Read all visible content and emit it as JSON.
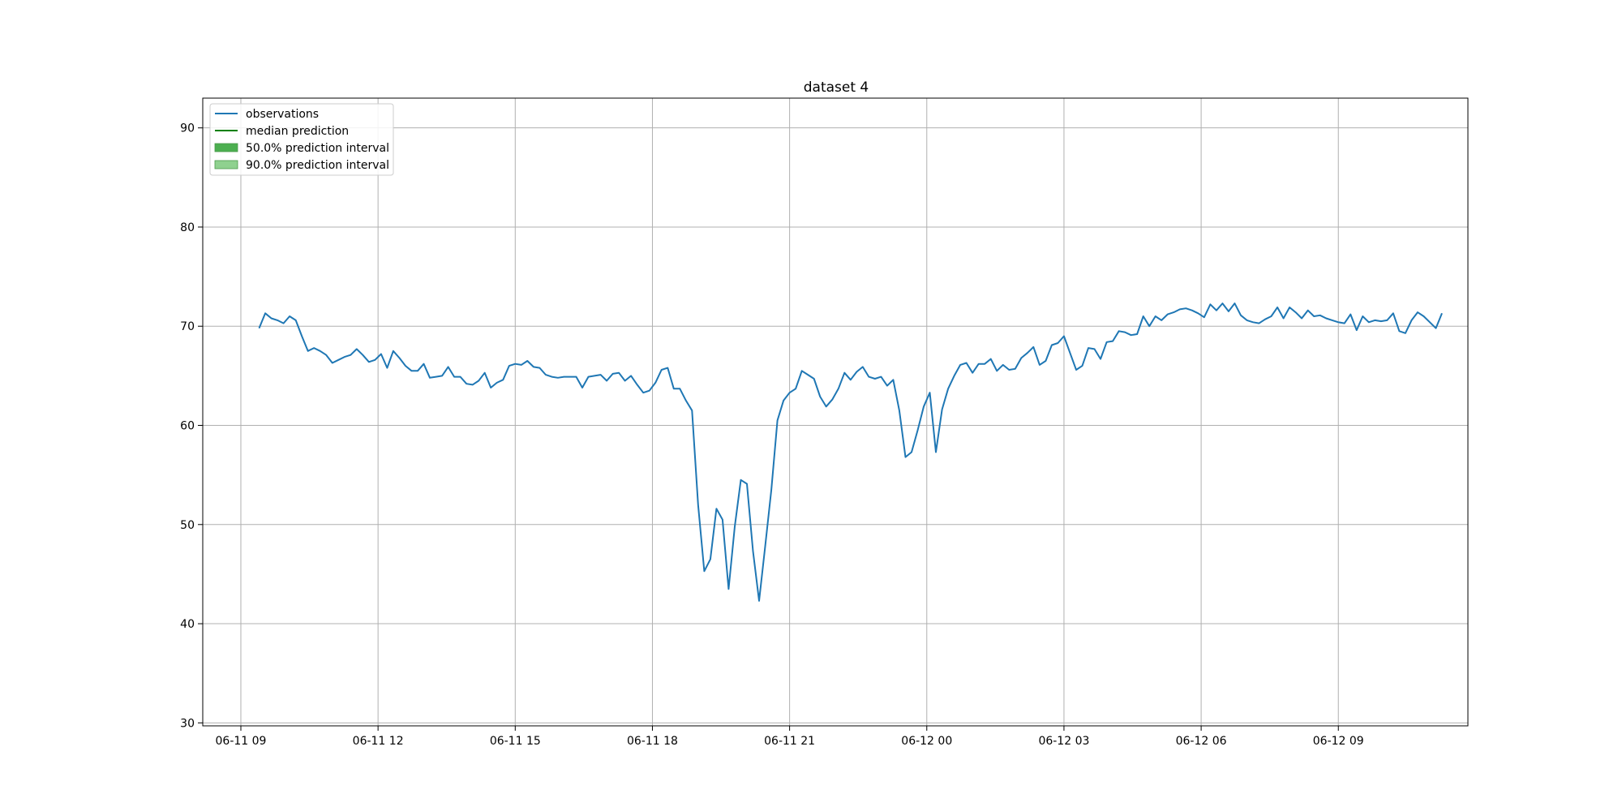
{
  "chart_data": {
    "type": "line",
    "title": "dataset 4",
    "xlabel": "",
    "ylabel": "",
    "grid": true,
    "legend_position": "top-left",
    "x_range": [
      "2023-06-11 08:10",
      "2023-06-12 11:50"
    ],
    "ylim": [
      29.7,
      93
    ],
    "x_ticks": [
      {
        "t": "2023-06-11 09:00",
        "label": "06-11 09"
      },
      {
        "t": "2023-06-11 12:00",
        "label": "06-11 12"
      },
      {
        "t": "2023-06-11 15:00",
        "label": "06-11 15"
      },
      {
        "t": "2023-06-11 18:00",
        "label": "06-11 18"
      },
      {
        "t": "2023-06-11 21:00",
        "label": "06-11 21"
      },
      {
        "t": "2023-06-12 00:00",
        "label": "06-12 00"
      },
      {
        "t": "2023-06-12 03:00",
        "label": "06-12 03"
      },
      {
        "t": "2023-06-12 06:00",
        "label": "06-12 06"
      },
      {
        "t": "2023-06-12 09:00",
        "label": "06-12 09"
      }
    ],
    "y_ticks": [
      30,
      40,
      50,
      60,
      70,
      80,
      90
    ],
    "colors": {
      "observations": "#1f77b4",
      "median": "#008000",
      "interval_50": "#4caf50",
      "interval_90": "#8fd18f"
    },
    "series": [
      {
        "name": "observations",
        "points": [
          [
            "2023-06-11 09:24",
            69.8
          ],
          [
            "2023-06-11 09:32",
            71.3
          ],
          [
            "2023-06-11 09:40",
            70.8
          ],
          [
            "2023-06-11 09:48",
            70.6
          ],
          [
            "2023-06-11 09:56",
            70.3
          ],
          [
            "2023-06-11 10:04",
            71.0
          ],
          [
            "2023-06-11 10:12",
            70.6
          ],
          [
            "2023-06-11 10:20",
            69.0
          ],
          [
            "2023-06-11 10:28",
            67.5
          ],
          [
            "2023-06-11 10:36",
            67.8
          ],
          [
            "2023-06-11 10:44",
            67.5
          ],
          [
            "2023-06-11 10:52",
            67.1
          ],
          [
            "2023-06-11 11:00",
            66.3
          ],
          [
            "2023-06-11 11:08",
            66.6
          ],
          [
            "2023-06-11 11:16",
            66.9
          ],
          [
            "2023-06-11 11:24",
            67.1
          ],
          [
            "2023-06-11 11:32",
            67.7
          ],
          [
            "2023-06-11 11:40",
            67.1
          ],
          [
            "2023-06-11 11:48",
            66.4
          ],
          [
            "2023-06-11 11:56",
            66.6
          ],
          [
            "2023-06-11 12:04",
            67.2
          ],
          [
            "2023-06-11 12:12",
            65.8
          ],
          [
            "2023-06-11 12:20",
            67.5
          ],
          [
            "2023-06-11 12:28",
            66.8
          ],
          [
            "2023-06-11 12:36",
            66.0
          ],
          [
            "2023-06-11 12:44",
            65.5
          ],
          [
            "2023-06-11 12:52",
            65.5
          ],
          [
            "2023-06-11 13:00",
            66.2
          ],
          [
            "2023-06-11 13:08",
            64.8
          ],
          [
            "2023-06-11 13:16",
            64.9
          ],
          [
            "2023-06-11 13:24",
            65.0
          ],
          [
            "2023-06-11 13:32",
            65.9
          ],
          [
            "2023-06-11 13:40",
            64.9
          ],
          [
            "2023-06-11 13:48",
            64.9
          ],
          [
            "2023-06-11 13:56",
            64.2
          ],
          [
            "2023-06-11 14:04",
            64.1
          ],
          [
            "2023-06-11 14:12",
            64.5
          ],
          [
            "2023-06-11 14:20",
            65.3
          ],
          [
            "2023-06-11 14:28",
            63.8
          ],
          [
            "2023-06-11 14:36",
            64.3
          ],
          [
            "2023-06-11 14:44",
            64.6
          ],
          [
            "2023-06-11 14:52",
            66.0
          ],
          [
            "2023-06-11 15:00",
            66.2
          ],
          [
            "2023-06-11 15:08",
            66.1
          ],
          [
            "2023-06-11 15:16",
            66.5
          ],
          [
            "2023-06-11 15:24",
            65.9
          ],
          [
            "2023-06-11 15:32",
            65.8
          ],
          [
            "2023-06-11 15:40",
            65.1
          ],
          [
            "2023-06-11 15:48",
            64.9
          ],
          [
            "2023-06-11 15:56",
            64.8
          ],
          [
            "2023-06-11 16:04",
            64.9
          ],
          [
            "2023-06-11 16:12",
            64.9
          ],
          [
            "2023-06-11 16:20",
            64.9
          ],
          [
            "2023-06-11 16:28",
            63.8
          ],
          [
            "2023-06-11 16:36",
            64.9
          ],
          [
            "2023-06-11 16:44",
            65.0
          ],
          [
            "2023-06-11 16:52",
            65.1
          ],
          [
            "2023-06-11 17:00",
            64.5
          ],
          [
            "2023-06-11 17:08",
            65.2
          ],
          [
            "2023-06-11 17:16",
            65.3
          ],
          [
            "2023-06-11 17:24",
            64.5
          ],
          [
            "2023-06-11 17:32",
            65.0
          ],
          [
            "2023-06-11 17:40",
            64.1
          ],
          [
            "2023-06-11 17:48",
            63.3
          ],
          [
            "2023-06-11 17:56",
            63.5
          ],
          [
            "2023-06-11 18:04",
            64.3
          ],
          [
            "2023-06-11 18:12",
            65.6
          ],
          [
            "2023-06-11 18:20",
            65.8
          ],
          [
            "2023-06-11 18:28",
            63.7
          ],
          [
            "2023-06-11 18:36",
            63.7
          ],
          [
            "2023-06-11 18:44",
            62.5
          ],
          [
            "2023-06-11 18:52",
            61.5
          ],
          [
            "2023-06-11 19:00",
            52.0
          ],
          [
            "2023-06-11 19:08",
            45.3
          ],
          [
            "2023-06-11 19:16",
            46.5
          ],
          [
            "2023-06-11 19:24",
            51.6
          ],
          [
            "2023-06-11 19:32",
            50.5
          ],
          [
            "2023-06-11 19:40",
            43.5
          ],
          [
            "2023-06-11 19:48",
            49.8
          ],
          [
            "2023-06-11 19:56",
            54.5
          ],
          [
            "2023-06-11 20:04",
            54.1
          ],
          [
            "2023-06-11 20:12",
            47.3
          ],
          [
            "2023-06-11 20:20",
            42.3
          ],
          [
            "2023-06-11 20:28",
            47.8
          ],
          [
            "2023-06-11 20:36",
            53.5
          ],
          [
            "2023-06-11 20:44",
            60.5
          ],
          [
            "2023-06-11 20:52",
            62.5
          ],
          [
            "2023-06-11 21:00",
            63.3
          ],
          [
            "2023-06-11 21:08",
            63.7
          ],
          [
            "2023-06-11 21:16",
            65.5
          ],
          [
            "2023-06-11 21:24",
            65.1
          ],
          [
            "2023-06-11 21:32",
            64.7
          ],
          [
            "2023-06-11 21:40",
            62.9
          ],
          [
            "2023-06-11 21:48",
            61.9
          ],
          [
            "2023-06-11 21:56",
            62.6
          ],
          [
            "2023-06-11 22:04",
            63.7
          ],
          [
            "2023-06-11 22:12",
            65.3
          ],
          [
            "2023-06-11 22:20",
            64.6
          ],
          [
            "2023-06-11 22:28",
            65.4
          ],
          [
            "2023-06-11 22:36",
            65.9
          ],
          [
            "2023-06-11 22:44",
            64.9
          ],
          [
            "2023-06-11 22:52",
            64.7
          ],
          [
            "2023-06-11 23:00",
            64.9
          ],
          [
            "2023-06-11 23:08",
            64.0
          ],
          [
            "2023-06-11 23:16",
            64.6
          ],
          [
            "2023-06-11 23:24",
            61.5
          ],
          [
            "2023-06-11 23:32",
            56.8
          ],
          [
            "2023-06-11 23:40",
            57.3
          ],
          [
            "2023-06-11 23:48",
            59.5
          ],
          [
            "2023-06-11 23:56",
            61.9
          ],
          [
            "2023-06-12 00:04",
            63.3
          ],
          [
            "2023-06-12 00:12",
            57.3
          ],
          [
            "2023-06-12 00:20",
            61.6
          ],
          [
            "2023-06-12 00:28",
            63.7
          ],
          [
            "2023-06-12 00:36",
            65.0
          ],
          [
            "2023-06-12 00:44",
            66.1
          ],
          [
            "2023-06-12 00:52",
            66.3
          ],
          [
            "2023-06-12 01:00",
            65.3
          ],
          [
            "2023-06-12 01:08",
            66.2
          ],
          [
            "2023-06-12 01:16",
            66.2
          ],
          [
            "2023-06-12 01:24",
            66.7
          ],
          [
            "2023-06-12 01:32",
            65.5
          ],
          [
            "2023-06-12 01:40",
            66.1
          ],
          [
            "2023-06-12 01:48",
            65.6
          ],
          [
            "2023-06-12 01:56",
            65.7
          ],
          [
            "2023-06-12 02:04",
            66.8
          ],
          [
            "2023-06-12 02:12",
            67.3
          ],
          [
            "2023-06-12 02:20",
            67.9
          ],
          [
            "2023-06-12 02:28",
            66.1
          ],
          [
            "2023-06-12 02:36",
            66.5
          ],
          [
            "2023-06-12 02:44",
            68.1
          ],
          [
            "2023-06-12 02:52",
            68.3
          ],
          [
            "2023-06-12 03:00",
            69.0
          ],
          [
            "2023-06-12 03:08",
            67.3
          ],
          [
            "2023-06-12 03:16",
            65.6
          ],
          [
            "2023-06-12 03:24",
            66.0
          ],
          [
            "2023-06-12 03:32",
            67.8
          ],
          [
            "2023-06-12 03:40",
            67.7
          ],
          [
            "2023-06-12 03:48",
            66.7
          ],
          [
            "2023-06-12 03:56",
            68.4
          ],
          [
            "2023-06-12 04:04",
            68.5
          ],
          [
            "2023-06-12 04:12",
            69.5
          ],
          [
            "2023-06-12 04:20",
            69.4
          ],
          [
            "2023-06-12 04:28",
            69.1
          ],
          [
            "2023-06-12 04:36",
            69.2
          ],
          [
            "2023-06-12 04:44",
            71.0
          ],
          [
            "2023-06-12 04:52",
            70.0
          ],
          [
            "2023-06-12 05:00",
            71.0
          ],
          [
            "2023-06-12 05:08",
            70.6
          ],
          [
            "2023-06-12 05:16",
            71.2
          ],
          [
            "2023-06-12 05:24",
            71.4
          ],
          [
            "2023-06-12 05:32",
            71.7
          ],
          [
            "2023-06-12 05:40",
            71.8
          ],
          [
            "2023-06-12 05:48",
            71.6
          ],
          [
            "2023-06-12 05:56",
            71.3
          ],
          [
            "2023-06-12 06:04",
            70.9
          ],
          [
            "2023-06-12 06:12",
            72.2
          ],
          [
            "2023-06-12 06:20",
            71.6
          ],
          [
            "2023-06-12 06:28",
            72.3
          ],
          [
            "2023-06-12 06:36",
            71.5
          ],
          [
            "2023-06-12 06:44",
            72.3
          ],
          [
            "2023-06-12 06:52",
            71.1
          ],
          [
            "2023-06-12 07:00",
            70.6
          ],
          [
            "2023-06-12 07:08",
            70.4
          ],
          [
            "2023-06-12 07:16",
            70.3
          ],
          [
            "2023-06-12 07:24",
            70.7
          ],
          [
            "2023-06-12 07:32",
            71.0
          ],
          [
            "2023-06-12 07:40",
            71.9
          ],
          [
            "2023-06-12 07:48",
            70.8
          ],
          [
            "2023-06-12 07:56",
            71.9
          ],
          [
            "2023-06-12 08:04",
            71.4
          ],
          [
            "2023-06-12 08:12",
            70.8
          ],
          [
            "2023-06-12 08:20",
            71.6
          ],
          [
            "2023-06-12 08:28",
            71.0
          ],
          [
            "2023-06-12 08:36",
            71.1
          ],
          [
            "2023-06-12 08:44",
            70.8
          ],
          [
            "2023-06-12 08:52",
            70.6
          ],
          [
            "2023-06-12 09:00",
            70.4
          ],
          [
            "2023-06-12 09:08",
            70.3
          ],
          [
            "2023-06-12 09:16",
            71.2
          ],
          [
            "2023-06-12 09:24",
            69.6
          ],
          [
            "2023-06-12 09:32",
            71.0
          ],
          [
            "2023-06-12 09:40",
            70.4
          ],
          [
            "2023-06-12 09:48",
            70.6
          ],
          [
            "2023-06-12 09:56",
            70.5
          ],
          [
            "2023-06-12 10:04",
            70.6
          ],
          [
            "2023-06-12 10:12",
            71.3
          ],
          [
            "2023-06-12 10:20",
            69.5
          ],
          [
            "2023-06-12 10:28",
            69.3
          ],
          [
            "2023-06-12 10:36",
            70.6
          ],
          [
            "2023-06-12 10:44",
            71.4
          ],
          [
            "2023-06-12 10:52",
            71.0
          ],
          [
            "2023-06-12 11:00",
            70.4
          ],
          [
            "2023-06-12 11:08",
            69.8
          ],
          [
            "2023-06-12 11:16",
            71.3
          ]
        ]
      },
      {
        "name": "median prediction",
        "points": []
      }
    ],
    "intervals": [
      {
        "name": "50.0% prediction interval",
        "points": []
      },
      {
        "name": "90.0% prediction interval",
        "points": []
      }
    ],
    "legend": [
      {
        "label": "observations",
        "kind": "line",
        "color": "#1f77b4"
      },
      {
        "label": "median prediction",
        "kind": "line",
        "color": "#008000"
      },
      {
        "label": "50.0% prediction interval",
        "kind": "patch",
        "color": "#4caf50"
      },
      {
        "label": "90.0% prediction interval",
        "kind": "patch",
        "color": "#8fd18f"
      }
    ]
  }
}
